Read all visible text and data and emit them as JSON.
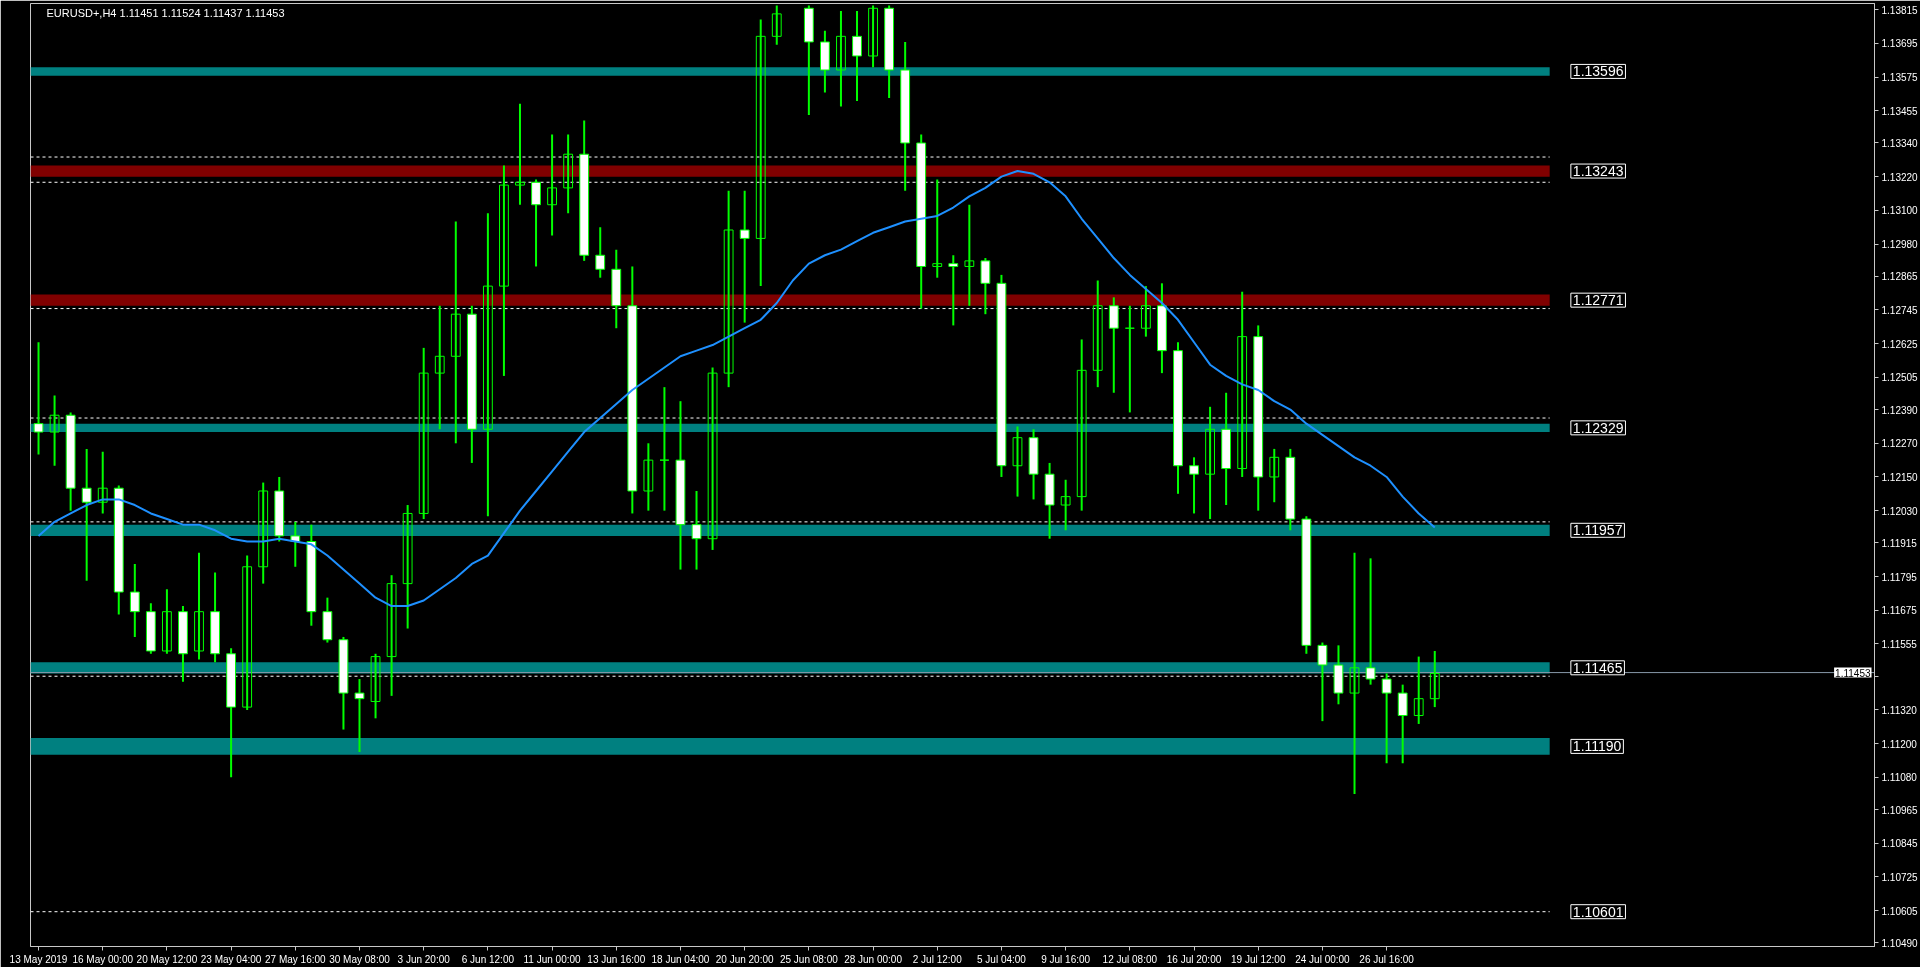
{
  "chart_data": {
    "type": "candlestick",
    "title": "EURUSD+,H4  1.11451 1.11524 1.11437 1.11453",
    "color": "#00ff00",
    "categories": [
      "13 May 2019",
      null,
      null,
      null,
      "16 May 00:00",
      null,
      null,
      null,
      "20 May 12:00",
      null,
      null,
      null,
      "23 May 04:00",
      null,
      null,
      null,
      "27 May 16:00",
      null,
      null,
      null,
      "30 May 08:00",
      null,
      null,
      null,
      "3 Jun 20:00",
      null,
      null,
      null,
      "6 Jun 12:00",
      null,
      null,
      null,
      "11 Jun 00:00",
      null,
      null,
      null,
      "13 Jun 16:00",
      null,
      null,
      null,
      "18 Jun 04:00",
      null,
      null,
      null,
      "20 Jun 20:00",
      null,
      null,
      null,
      "25 Jun 08:00",
      null,
      null,
      null,
      "28 Jun 00:00",
      null,
      null,
      null,
      "2 Jul 12:00",
      null,
      null,
      null,
      "5 Jul 04:00",
      null,
      null,
      null,
      "9 Jul 16:00",
      null,
      null,
      null,
      "12 Jul 08:00",
      null,
      null,
      null,
      "16 Jul 20:00",
      null,
      null,
      null,
      "19 Jul 12:00",
      null,
      null,
      null,
      "24 Jul 00:00",
      null,
      null,
      null,
      "26 Jul 16:00",
      null,
      null,
      null
    ],
    "ohlc": [
      [
        1.1234,
        1.1263,
        1.1223,
        1.1231
      ],
      [
        1.1231,
        1.1244,
        1.1219,
        1.1237
      ],
      [
        1.1237,
        1.1238,
        1.1203,
        1.1211
      ],
      [
        1.1211,
        1.1225,
        1.1178,
        1.1206
      ],
      [
        1.1206,
        1.1224,
        1.1202,
        1.1211
      ],
      [
        1.1211,
        1.1212,
        1.1166,
        1.1174
      ],
      [
        1.1174,
        1.1184,
        1.1158,
        1.1167
      ],
      [
        1.1167,
        1.117,
        1.1152,
        1.1153
      ],
      [
        1.1153,
        1.1175,
        1.1152,
        1.1167
      ],
      [
        1.1167,
        1.1169,
        1.1142,
        1.1152
      ],
      [
        1.1153,
        1.1188,
        1.115,
        1.1167
      ],
      [
        1.1167,
        1.1181,
        1.1149,
        1.1152
      ],
      [
        1.1152,
        1.1154,
        1.1108,
        1.1133
      ],
      [
        1.1133,
        1.1187,
        1.1132,
        1.1183
      ],
      [
        1.1183,
        1.1213,
        1.1177,
        1.121
      ],
      [
        1.121,
        1.1215,
        1.1192,
        1.1194
      ],
      [
        1.1194,
        1.1199,
        1.1183,
        1.1192
      ],
      [
        1.1192,
        1.1198,
        1.1162,
        1.1167
      ],
      [
        1.1167,
        1.1172,
        1.1156,
        1.1157
      ],
      [
        1.1157,
        1.1158,
        1.1125,
        1.1138
      ],
      [
        1.1138,
        1.1143,
        1.1117,
        1.1136
      ],
      [
        1.1135,
        1.1152,
        1.1129,
        1.1151
      ],
      [
        1.1151,
        1.118,
        1.1137,
        1.1177
      ],
      [
        1.1177,
        1.1205,
        1.1161,
        1.1202
      ],
      [
        1.1202,
        1.1261,
        1.12,
        1.1252
      ],
      [
        1.1252,
        1.1276,
        1.1232,
        1.1258
      ],
      [
        1.1258,
        1.1306,
        1.1227,
        1.1273
      ],
      [
        1.1273,
        1.1276,
        1.122,
        1.1232
      ],
      [
        1.1232,
        1.1309,
        1.1201,
        1.1283
      ],
      [
        1.1283,
        1.1326,
        1.1251,
        1.1319
      ],
      [
        1.1319,
        1.1348,
        1.1312,
        1.132
      ],
      [
        1.132,
        1.1321,
        1.129,
        1.1312
      ],
      [
        1.1312,
        1.1337,
        1.1301,
        1.1318
      ],
      [
        1.1318,
        1.1337,
        1.1309,
        1.133
      ],
      [
        1.133,
        1.1342,
        1.1292,
        1.1294
      ],
      [
        1.1294,
        1.1304,
        1.1286,
        1.1289
      ],
      [
        1.1289,
        1.1296,
        1.1268,
        1.1276
      ],
      [
        1.1276,
        1.129,
        1.1202,
        1.121
      ],
      [
        1.121,
        1.1227,
        1.1203,
        1.1221
      ],
      [
        1.1221,
        1.1247,
        1.1203,
        1.1221
      ],
      [
        1.1221,
        1.1242,
        1.1182,
        1.1198
      ],
      [
        1.1198,
        1.121,
        1.1182,
        1.1193
      ],
      [
        1.1193,
        1.1254,
        1.1189,
        1.1252
      ],
      [
        1.1252,
        1.1317,
        1.1247,
        1.1303
      ],
      [
        1.1303,
        1.1317,
        1.127,
        1.13
      ],
      [
        1.13,
        1.1378,
        1.1283,
        1.1372
      ],
      [
        1.1372,
        1.1383,
        1.1369,
        1.138
      ],
      null,
      [
        1.1382,
        1.1383,
        1.1344,
        1.137
      ],
      [
        1.137,
        1.1374,
        1.1352,
        1.136
      ],
      [
        1.136,
        1.1381,
        1.1347,
        1.1372
      ],
      [
        1.1372,
        1.1381,
        1.1349,
        1.1365
      ],
      [
        1.1365,
        1.1383,
        1.1361,
        1.1382
      ],
      [
        1.1382,
        1.1383,
        1.135,
        1.136
      ],
      [
        1.136,
        1.137,
        1.1317,
        1.1334
      ],
      [
        1.1334,
        1.1337,
        1.1275,
        1.129
      ],
      [
        1.129,
        1.1321,
        1.1286,
        1.1291
      ],
      [
        1.1291,
        1.1294,
        1.1269,
        1.129
      ],
      [
        1.129,
        1.1312,
        1.1276,
        1.1292
      ],
      [
        1.1292,
        1.1293,
        1.1273,
        1.1284
      ],
      [
        1.1284,
        1.1287,
        1.1215,
        1.1219
      ],
      [
        1.1219,
        1.1233,
        1.1208,
        1.1229
      ],
      [
        1.1229,
        1.1232,
        1.1207,
        1.1216
      ],
      [
        1.1216,
        1.122,
        1.1193,
        1.1205
      ],
      [
        1.1205,
        1.1214,
        1.1196,
        1.1208
      ],
      [
        1.1208,
        1.1264,
        1.1203,
        1.1253
      ],
      [
        1.1253,
        1.1285,
        1.1247,
        1.1276
      ],
      [
        1.1276,
        1.1279,
        1.1245,
        1.1268
      ],
      [
        1.1268,
        1.1276,
        1.1238,
        1.1268
      ],
      [
        1.1268,
        1.1283,
        1.1265,
        1.1276
      ],
      [
        1.1276,
        1.1284,
        1.1252,
        1.126
      ],
      [
        1.126,
        1.1263,
        1.1209,
        1.1219
      ],
      [
        1.1219,
        1.1222,
        1.1202,
        1.1216
      ],
      [
        1.1216,
        1.124,
        1.12,
        1.1232
      ],
      [
        1.1232,
        1.1245,
        1.1205,
        1.1218
      ],
      [
        1.1218,
        1.1281,
        1.1215,
        1.1265
      ],
      [
        1.1265,
        1.1269,
        1.1203,
        1.1215
      ],
      [
        1.1215,
        1.1225,
        1.1206,
        1.1222
      ],
      [
        1.1222,
        1.1225,
        1.1196,
        1.12
      ],
      [
        1.12,
        1.1201,
        1.1152,
        1.1155
      ],
      [
        1.1155,
        1.1156,
        1.1128,
        1.1148
      ],
      [
        1.1148,
        1.1155,
        1.1134,
        1.1138
      ],
      [
        1.1138,
        1.1188,
        1.1102,
        1.1147
      ],
      [
        1.1147,
        1.1186,
        1.1141,
        1.1143
      ],
      [
        1.1143,
        1.1145,
        1.1113,
        1.1138
      ],
      [
        1.1138,
        1.1141,
        1.1113,
        1.113
      ],
      [
        1.113,
        1.1151,
        1.1127,
        1.1136
      ],
      [
        1.1136,
        1.1153,
        1.1133,
        1.1145
      ]
    ],
    "series": [
      {
        "type": "line",
        "color": "#1e90ff",
        "values": [
          1.1194,
          1.1199,
          1.1202,
          1.1205,
          1.1207,
          1.1207,
          1.1205,
          1.1202,
          1.12,
          1.1198,
          1.1198,
          1.1196,
          1.1193,
          1.1192,
          1.1192,
          1.1193,
          1.1192,
          1.1191,
          1.1187,
          1.1182,
          1.1177,
          1.1172,
          1.1169,
          1.1169,
          1.1171,
          1.1175,
          1.1179,
          1.1184,
          1.1187,
          1.1195,
          1.1203,
          1.121,
          1.1217,
          1.1224,
          1.1231,
          1.1236,
          1.1241,
          1.1246,
          1.125,
          1.1254,
          1.1258,
          1.126,
          1.1262,
          1.1265,
          1.1268,
          1.1271,
          1.1277,
          1.1285,
          1.1291,
          1.1294,
          1.1296,
          1.1299,
          1.1302,
          1.1304,
          1.1306,
          1.1307,
          1.1308,
          1.1311,
          1.1315,
          1.1318,
          1.1322,
          1.1324,
          1.1323,
          1.132,
          1.1315,
          1.1307,
          1.13,
          1.1293,
          1.1287,
          1.1282,
          1.1277,
          1.1271,
          1.1263,
          1.1255,
          1.1251,
          1.1248,
          1.1246,
          1.1242,
          1.1239,
          1.1234,
          1.123,
          1.1226,
          1.1222,
          1.1219,
          1.1215,
          1.1208,
          1.1202,
          1.1197
        ]
      }
    ],
    "ylim": [
      1.10477,
      1.13837
    ],
    "yticks": [
      1.13815,
      1.13695,
      1.13575,
      1.13455,
      {
        "value": 1.1334,
        "label": "1.13340"
      },
      {
        "value": 1.1322,
        "label": "1.13220"
      },
      {
        "value": 1.131,
        "label": "1.13100"
      },
      {
        "value": 1.1298,
        "label": "1.12980"
      },
      1.12865,
      1.12745,
      1.12625,
      1.12505,
      {
        "value": 1.1239,
        "label": "1.12390"
      },
      {
        "value": 1.1227,
        "label": "1.12270"
      },
      {
        "value": 1.1215,
        "label": "1.12150"
      },
      {
        "value": 1.1203,
        "label": "1.12030"
      },
      1.11915,
      1.11795,
      1.11675,
      1.11555,
      {
        "value": 1.1144,
        "label": null
      },
      {
        "value": 1.1132,
        "label": "1.11320"
      },
      {
        "value": 1.112,
        "label": "1.11200"
      },
      {
        "value": 1.1108,
        "label": "1.11080"
      },
      1.10965,
      1.10845,
      1.10725,
      1.10605,
      {
        "value": 1.1049,
        "label": "1.10490"
      }
    ],
    "bands": [
      {
        "axis": "y",
        "from": 1.1358,
        "to": 1.1361,
        "label": "1.13596",
        "color": "#008080"
      },
      {
        "axis": "y",
        "from": 1.1322,
        "to": 1.1326,
        "label": "1.13243",
        "color": "#800000"
      },
      {
        "axis": "y",
        "from": 1.1276,
        "to": 1.128,
        "label": "1.12771",
        "color": "#800000"
      },
      {
        "axis": "y",
        "from": 1.1231,
        "to": 1.1234,
        "label": "1.12329",
        "color": "#008080"
      },
      {
        "axis": "y",
        "from": 1.1194,
        "to": 1.1198,
        "label": "1.11957",
        "color": "#008080"
      },
      {
        "axis": "y",
        "from": 1.1145,
        "to": 1.1149,
        "label": "1.11465",
        "color": "#008080"
      },
      {
        "axis": "y",
        "from": 1.1116,
        "to": 1.1122,
        "label": "1.11190",
        "color": "#008080"
      }
    ],
    "ref_lines": [
      {
        "axis": "y",
        "value": 1.10601,
        "label": "1.10601",
        "color": "#ffffff",
        "line_style": "dashed"
      },
      {
        "axis": "y",
        "value": 1.11453,
        "label": "1.11453",
        "color": "#8899aa",
        "line_style": "solid"
      },
      {
        "axis": "y",
        "value": 1.1329,
        "label": null,
        "color": "#ffffff",
        "line_style": "dashed"
      },
      {
        "axis": "y",
        "value": 1.132,
        "label": null,
        "color": "#ffffff",
        "line_style": "dashed"
      },
      {
        "axis": "y",
        "value": 1.1275,
        "label": null,
        "color": "#ffffff",
        "line_style": "dashed"
      },
      {
        "axis": "y",
        "value": 1.1236,
        "label": null,
        "color": "#ffffff",
        "line_style": "dashed"
      },
      {
        "axis": "y",
        "value": 1.1199,
        "label": null,
        "color": "#ffffff",
        "line_style": "dashed"
      },
      {
        "axis": "y",
        "value": 1.1144,
        "label": null,
        "color": "#ffffff",
        "line_style": "dashed"
      }
    ]
  }
}
